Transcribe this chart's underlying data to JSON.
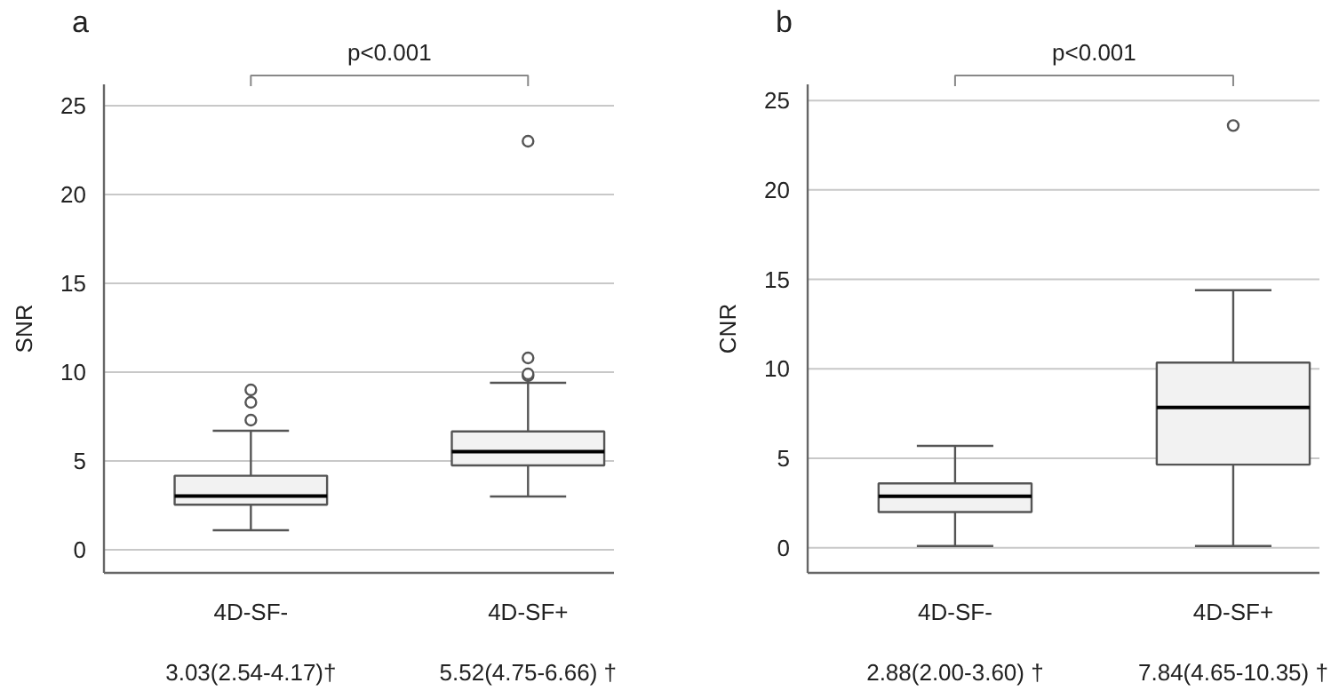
{
  "chart_data": [
    {
      "type": "box",
      "title": "a",
      "ylabel": "SNR",
      "categories": [
        "4D-SF-",
        "4D-SF+"
      ],
      "color": "#f2f2f2",
      "boxes": [
        {
          "low": 1.1,
          "q1": 2.54,
          "median": 3.03,
          "q3": 4.17,
          "high": 6.7,
          "outliers": [
            7.3,
            8.3,
            9.0
          ]
        },
        {
          "low": 3.0,
          "q1": 4.75,
          "median": 5.52,
          "q3": 6.66,
          "high": 9.4,
          "outliers": [
            9.8,
            9.9,
            10.8,
            23.0
          ]
        }
      ],
      "ylim": [
        -1.3,
        26.2
      ],
      "yticks": [
        0,
        5,
        10,
        15,
        20,
        25
      ],
      "grid": "y",
      "annotations": [
        "p<0.001",
        "3.03(2.54-4.17)†",
        "5.52(4.75-6.66) †"
      ]
    },
    {
      "type": "box",
      "title": "b",
      "ylabel": "CNR",
      "categories": [
        "4D-SF-",
        "4D-SF+"
      ],
      "color": "#f2f2f2",
      "boxes": [
        {
          "low": 0.1,
          "q1": 2.0,
          "median": 2.88,
          "q3": 3.6,
          "high": 5.7
        },
        {
          "low": 0.1,
          "q1": 4.65,
          "median": 7.84,
          "q3": 10.35,
          "high": 14.4,
          "outliers": [
            23.6
          ]
        }
      ],
      "ylim": [
        -1.4,
        25.9
      ],
      "yticks": [
        0,
        5,
        10,
        15,
        20,
        25
      ],
      "grid": "y",
      "annotations": [
        "p<0.001",
        "2.88(2.00-3.60) †",
        "7.84(4.65-10.35) †"
      ]
    }
  ]
}
